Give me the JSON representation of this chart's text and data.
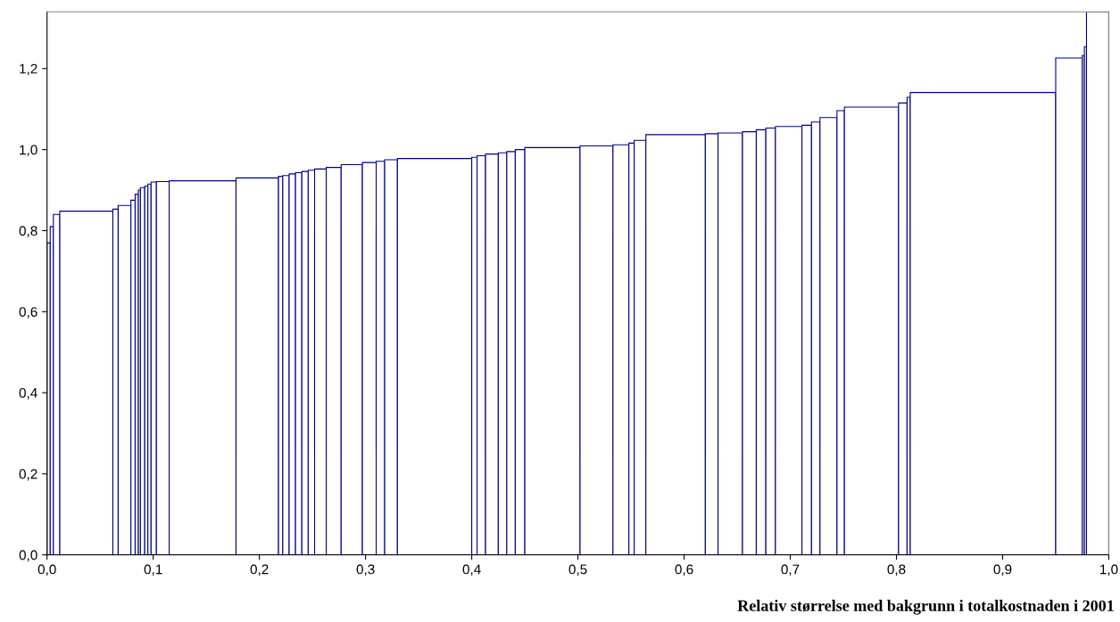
{
  "chart_data": {
    "type": "histogram",
    "xlabel": "Relativ størrelse med bakgrunn i totalkostnaden i 2001",
    "color": "#000080",
    "bins": [
      0,
      0.003,
      0.006,
      0.012,
      0.062,
      0.067,
      0.079,
      0.083,
      0.086,
      0.088,
      0.092,
      0.095,
      0.098,
      0.103,
      0.115,
      0.178,
      0.218,
      0.222,
      0.228,
      0.234,
      0.24,
      0.246,
      0.252,
      0.263,
      0.277,
      0.297,
      0.31,
      0.318,
      0.33,
      0.4,
      0.405,
      0.413,
      0.425,
      0.433,
      0.441,
      0.45,
      0.502,
      0.533,
      0.548,
      0.553,
      0.564,
      0.62,
      0.632,
      0.655,
      0.668,
      0.677,
      0.686,
      0.711,
      0.72,
      0.728,
      0.744,
      0.751,
      0.802,
      0.81,
      0.813,
      0.95,
      0.975,
      0.977,
      0.979,
      1.0
    ],
    "values": [
      0.77,
      0.81,
      0.84,
      0.848,
      0.853,
      0.862,
      0.875,
      0.89,
      0.9,
      0.906,
      0.91,
      0.915,
      0.92,
      0.921,
      0.923,
      0.93,
      0.934,
      0.936,
      0.94,
      0.943,
      0.946,
      0.949,
      0.952,
      0.956,
      0.963,
      0.968,
      0.971,
      0.975,
      0.978,
      0.981,
      0.985,
      0.989,
      0.992,
      0.995,
      1.0,
      1.005,
      1.009,
      1.012,
      1.016,
      1.023,
      1.037,
      1.039,
      1.041,
      1.044,
      1.049,
      1.053,
      1.057,
      1.06,
      1.068,
      1.079,
      1.096,
      1.105,
      1.115,
      1.129,
      1.141,
      1.226,
      1.232,
      1.254,
      1.34
    ],
    "xlim": [
      0,
      1.0
    ],
    "ylim": [
      0,
      1.34
    ],
    "xticks": [
      {
        "value": 0,
        "label": "0,0"
      },
      {
        "value": 0.1,
        "label": "0,1"
      },
      {
        "value": 0.2,
        "label": "0,2"
      },
      {
        "value": 0.3,
        "label": "0,3"
      },
      {
        "value": 0.4,
        "label": "0,4"
      },
      {
        "value": 0.5,
        "label": "0,5"
      },
      {
        "value": 0.6,
        "label": "0,6"
      },
      {
        "value": 0.7,
        "label": "0,7"
      },
      {
        "value": 0.8,
        "label": "0,8"
      },
      {
        "value": 0.9,
        "label": "0,9"
      },
      {
        "value": 1.0,
        "label": "1,0"
      }
    ],
    "yticks": [
      {
        "value": 0,
        "label": "0,0"
      },
      {
        "value": 0.2,
        "label": "0,2"
      },
      {
        "value": 0.4,
        "label": "0,4"
      },
      {
        "value": 0.6,
        "label": "0,6"
      },
      {
        "value": 0.8,
        "label": "0,8"
      },
      {
        "value": 1.0,
        "label": "1,0"
      },
      {
        "value": 1.2,
        "label": "1,2"
      }
    ],
    "grid": false
  }
}
